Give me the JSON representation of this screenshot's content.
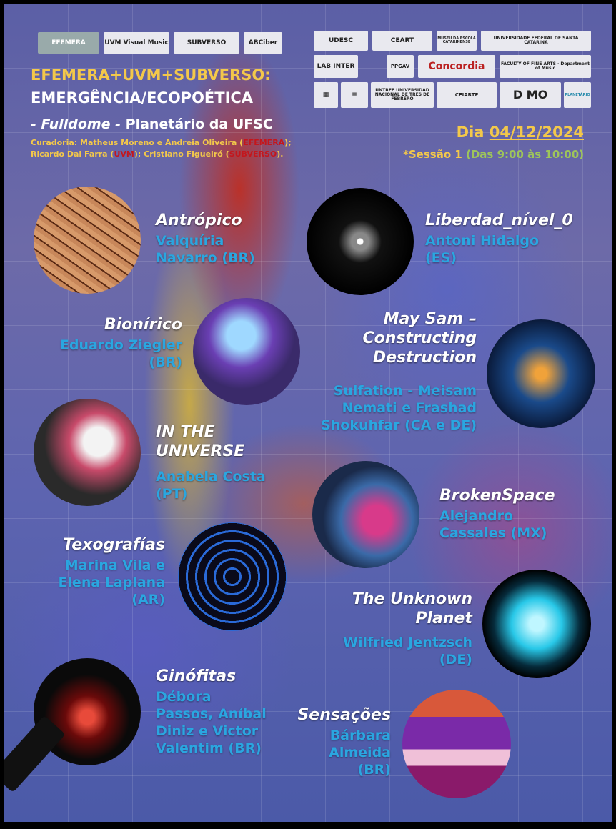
{
  "logos": [
    "EFEMERA",
    "UVM Visual Music",
    "SUBVERSO",
    "ABCiber",
    "UDESC",
    "CEART",
    "MUSEU DA ESCOLA CATARINENSE",
    "UNIVERSIDADE FEDERAL DE SANTA CATARINA",
    "LAB INTER",
    "PPGAV",
    "Concordia",
    "FACULTY OF FINE ARTS · Department of Music",
    "UNTREF UNIVERSIDAD NACIONAL DE TRES DE FEBRERO",
    "CEIARTE",
    "D MO",
    "PLANETÁRIO"
  ],
  "header": {
    "line1": "EFEMERA+UVM+SUBVERSO:",
    "line2": "EMERGÊNCIA/ECOPOÉTICA",
    "sub_italic": "- Fulldome -",
    "sub_rest": " Planetário da UFSC",
    "curadoria_prefix": "Curadoria: Matheus Moreno e Andreia Oliveira (",
    "curadoria_h1": "EFEMERA",
    "curadoria_mid": ");",
    "curadoria2_prefix": "Ricardo Dal Farra (",
    "curadoria2_h1": "UVM",
    "curadoria2_mid": "); Cristiano Figueiró (",
    "curadoria2_h2": "SUBVERSO",
    "curadoria2_end": ")."
  },
  "date": {
    "label": "Dia ",
    "value": "04/12/2024"
  },
  "session": {
    "label": "*Sessão 1",
    "time": " (Das 9:00 às 10:00)"
  },
  "works": [
    {
      "title": "Antrópico",
      "author": "Valquíria Navarro (BR)"
    },
    {
      "title": "Liberdad_nível_0",
      "author": "Antoni Hidalgo (ES)"
    },
    {
      "title": "Bionírico",
      "author": "Eduardo Ziegler (BR)"
    },
    {
      "title": "May Sam – Constructing Destruction",
      "author": "Sulfation - Meisam Nemati e Frashad Shokuhfar (CA e DE)"
    },
    {
      "title": "IN THE UNIVERSE",
      "author": "Anabela Costa (PT)"
    },
    {
      "title": "BrokenSpace",
      "author": "Alejandro Cassales (MX)"
    },
    {
      "title": "Texografías",
      "author": "Marina Vila e Elena Laplana (AR)"
    },
    {
      "title": "The Unknown Planet",
      "author": "Wilfried Jentzsch (DE)"
    },
    {
      "title": "Ginófitas",
      "author": "Débora Passos, Aníbal Diniz e Victor Valentim (BR)"
    },
    {
      "title": "Sensações",
      "author": "Bárbara Almeida (BR)"
    }
  ]
}
